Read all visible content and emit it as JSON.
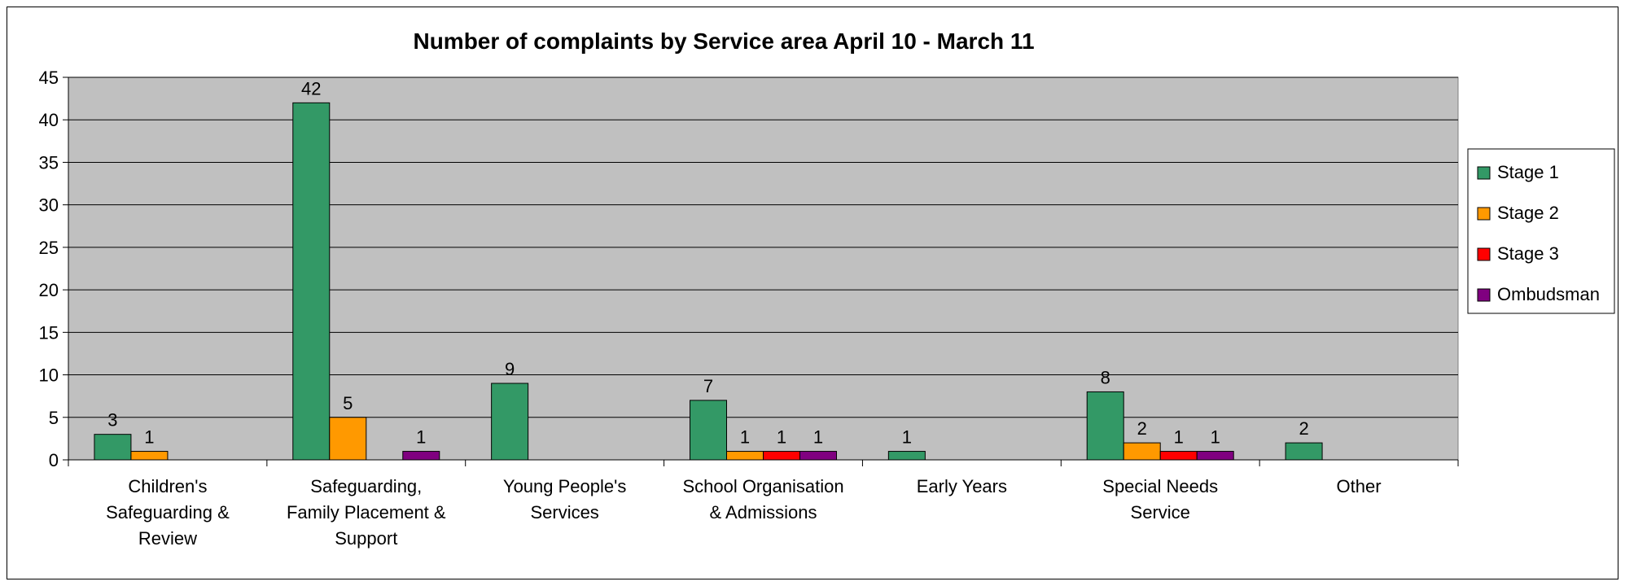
{
  "chart_data": {
    "type": "bar",
    "title": "Number of complaints by Service area April 10 - March 11",
    "xlabel": "",
    "ylabel": "",
    "ylim": [
      0,
      45
    ],
    "yticks": [
      0,
      5,
      10,
      15,
      20,
      25,
      30,
      35,
      40,
      45
    ],
    "grid": true,
    "legend_position": "right",
    "plot_background": "#c0c0c0",
    "categories": [
      [
        "Children's",
        "Safeguarding &",
        "Review"
      ],
      [
        "Safeguarding,",
        "Family Placement &",
        "Support"
      ],
      [
        "Young People's",
        "Services"
      ],
      [
        "School Organisation",
        "& Admissions"
      ],
      [
        "Early Years"
      ],
      [
        "Special Needs",
        "Service"
      ],
      [
        "Other"
      ]
    ],
    "series": [
      {
        "name": "Stage 1",
        "color": "#339966",
        "values": [
          3,
          42,
          9,
          7,
          1,
          8,
          2
        ]
      },
      {
        "name": "Stage 2",
        "color": "#ff9900",
        "values": [
          1,
          5,
          null,
          1,
          null,
          2,
          null
        ]
      },
      {
        "name": "Stage 3",
        "color": "#ff0000",
        "values": [
          null,
          null,
          null,
          1,
          null,
          1,
          null
        ]
      },
      {
        "name": "Ombudsman",
        "color": "#800080",
        "values": [
          null,
          1,
          null,
          1,
          null,
          1,
          null
        ]
      }
    ]
  }
}
